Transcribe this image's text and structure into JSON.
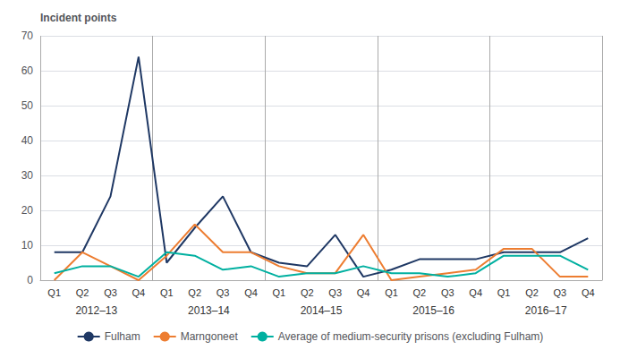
{
  "chart_data": {
    "type": "line",
    "y_label": "Incident points",
    "categories": [
      "Q1",
      "Q2",
      "Q3",
      "Q4",
      "Q1",
      "Q2",
      "Q3",
      "Q4",
      "Q1",
      "Q2",
      "Q3",
      "Q4",
      "Q1",
      "Q2",
      "Q3",
      "Q4",
      "Q1",
      "Q2",
      "Q3",
      "Q4"
    ],
    "annotations": [
      "2012–13",
      "2013–14",
      "2014–15",
      "2015–16",
      "2016–17"
    ],
    "series": [
      {
        "name": "Fulham",
        "color": "#1f3864",
        "values": [
          8,
          8,
          24,
          64,
          5,
          15,
          24,
          8,
          5,
          4,
          13,
          1,
          3,
          6,
          6,
          6,
          8,
          8,
          8,
          12
        ]
      },
      {
        "name": "Marngoneet",
        "color": "#ed7d31",
        "values": [
          0,
          8,
          4,
          0,
          7,
          16,
          8,
          8,
          4,
          2,
          2,
          13,
          0,
          1,
          2,
          3,
          9,
          9,
          1,
          1
        ]
      },
      {
        "name": "Average of medium-security prisons (excluding Fulham)",
        "color": "#00b0a0",
        "values": [
          2,
          4,
          4,
          1,
          8,
          7,
          3,
          4,
          1,
          2,
          2,
          4,
          2,
          2,
          1,
          2,
          7,
          7,
          7,
          3
        ]
      }
    ],
    "ylim": [
      0,
      70
    ],
    "yticks": [
      0,
      10,
      20,
      30,
      40,
      50,
      60,
      70
    ],
    "grid": true,
    "legend": "bottom"
  }
}
